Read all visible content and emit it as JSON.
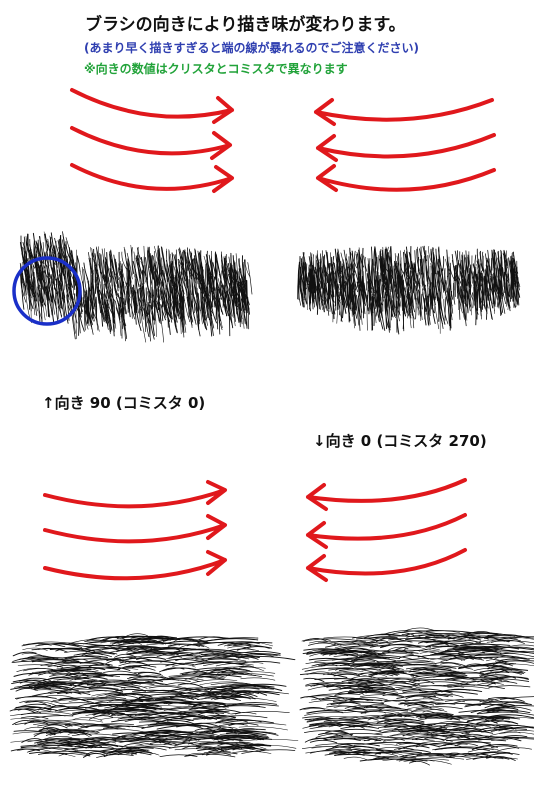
{
  "title": "ブラシの向きにより描き味が変わります。",
  "note_blue": "(あまり早く描きすぎると端の線が暴れるのでご注意ください)",
  "note_green": "※向きの数値はクリスタとコミスタで異なります",
  "label_up": "↑向き 90 (コミスタ 0)",
  "label_down": "↓向き 0 (コミスタ 270)",
  "colors": {
    "arrow": "#e0181c",
    "circle": "#1a2fc8",
    "stroke": "#111111",
    "note_blue": "#2f3fb0",
    "note_green": "#22a33a"
  }
}
